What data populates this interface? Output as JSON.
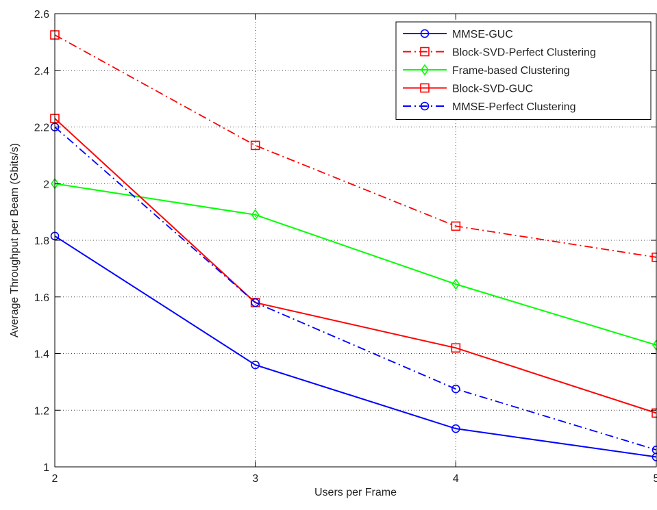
{
  "chart_data": {
    "type": "line",
    "title": "",
    "xlabel": "Users per Frame",
    "ylabel": "Average Throughput per Beam (Gbits/s)",
    "xlim": [
      2,
      5
    ],
    "ylim": [
      1,
      2.6
    ],
    "xticks": [
      2,
      3,
      4,
      5
    ],
    "yticks": [
      1,
      1.2,
      1.4,
      1.6,
      1.8,
      2,
      2.2,
      2.4,
      2.6
    ],
    "xtick_labels": [
      "2",
      "3",
      "4",
      "5"
    ],
    "ytick_labels": [
      "1",
      "1.2",
      "1.4",
      "1.6",
      "1.8",
      "2",
      "2.2",
      "2.4",
      "2.6"
    ],
    "grid": true,
    "legend_position": "top-right",
    "x": [
      2,
      3,
      4,
      5
    ],
    "series": [
      {
        "name": "MMSE-GUC",
        "values": [
          1.815,
          1.36,
          1.135,
          1.035
        ],
        "color": "#0000ff",
        "dash": "solid",
        "marker": "circle"
      },
      {
        "name": "Block-SVD-Perfect Clustering",
        "values": [
          2.525,
          2.135,
          1.85,
          1.74
        ],
        "color": "#ff0000",
        "dash": "dashdot",
        "marker": "square"
      },
      {
        "name": "Frame-based Clustering",
        "values": [
          2.0,
          1.89,
          1.645,
          1.43
        ],
        "color": "#00ff00",
        "dash": "solid",
        "marker": "diamond"
      },
      {
        "name": "Block-SVD-GUC",
        "values": [
          2.23,
          1.58,
          1.42,
          1.19
        ],
        "color": "#ff0000",
        "dash": "solid",
        "marker": "square"
      },
      {
        "name": "MMSE-Perfect Clustering",
        "values": [
          2.2,
          1.58,
          1.275,
          1.06
        ],
        "color": "#0000ff",
        "dash": "dashdot",
        "marker": "circle"
      }
    ]
  }
}
